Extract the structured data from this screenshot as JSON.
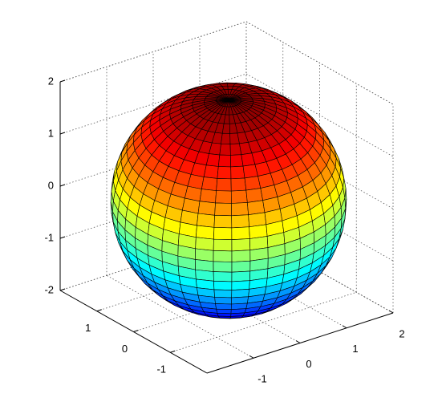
{
  "chart_data": {
    "type": "surface",
    "colormap": "jet",
    "radius": 2,
    "xlim": [
      -2,
      2
    ],
    "ylim": [
      -2,
      2
    ],
    "zlim": [
      -2,
      2
    ],
    "xticks": [
      -1,
      0,
      1,
      2
    ],
    "yticks": [
      -1,
      0,
      1
    ],
    "zticks": [
      -2,
      -1,
      0,
      1,
      2
    ],
    "grid": true
  }
}
